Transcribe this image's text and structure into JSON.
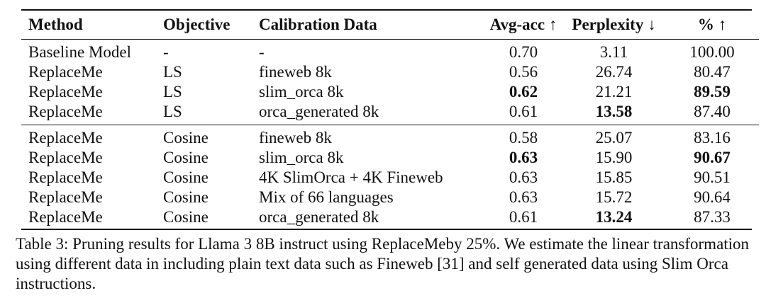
{
  "headers": {
    "method": "Method",
    "objective": "Objective",
    "calibration": "Calibration Data",
    "avg_acc": "Avg-acc ↑",
    "perplexity": "Perplexity ↓",
    "percent": "% ↑"
  },
  "group1": [
    {
      "method": "Baseline Model",
      "objective": "-",
      "data": "-",
      "acc": "0.70",
      "ppl": "3.11",
      "pct": "100.00",
      "bold": []
    },
    {
      "method": "ReplaceMe",
      "objective": "LS",
      "data": "fineweb 8k",
      "acc": "0.56",
      "ppl": "26.74",
      "pct": "80.47",
      "bold": []
    },
    {
      "method": "ReplaceMe",
      "objective": "LS",
      "data": "slim_orca 8k",
      "acc": "0.62",
      "ppl": "21.21",
      "pct": "89.59",
      "bold": [
        "acc",
        "pct"
      ]
    },
    {
      "method": "ReplaceMe",
      "objective": "LS",
      "data": "orca_generated 8k",
      "acc": "0.61",
      "ppl": "13.58",
      "pct": "87.40",
      "bold": [
        "ppl"
      ]
    }
  ],
  "group2": [
    {
      "method": "ReplaceMe",
      "objective": "Cosine",
      "data": "fineweb 8k",
      "acc": "0.58",
      "ppl": "25.07",
      "pct": "83.16",
      "bold": []
    },
    {
      "method": "ReplaceMe",
      "objective": "Cosine",
      "data": "slim_orca 8k",
      "acc": "0.63",
      "ppl": "15.90",
      "pct": "90.67",
      "bold": [
        "acc",
        "pct"
      ]
    },
    {
      "method": "ReplaceMe",
      "objective": "Cosine",
      "data": "4K SlimOrca + 4K Fineweb",
      "acc": "0.63",
      "ppl": "15.85",
      "pct": "90.51",
      "bold": []
    },
    {
      "method": "ReplaceMe",
      "objective": "Cosine",
      "data": "Mix of 66 languages",
      "acc": "0.63",
      "ppl": "15.72",
      "pct": "90.64",
      "bold": []
    },
    {
      "method": "ReplaceMe",
      "objective": "Cosine",
      "data": "orca_generated 8k",
      "acc": "0.61",
      "ppl": "13.24",
      "pct": "87.33",
      "bold": [
        "ppl"
      ]
    }
  ],
  "caption": "Table 3: Pruning results for Llama 3 8B instruct using ReplaceMeby 25%. We estimate the linear transformation using different data in including plain text data such as Fineweb [31] and self generated data using Slim Orca instructions."
}
